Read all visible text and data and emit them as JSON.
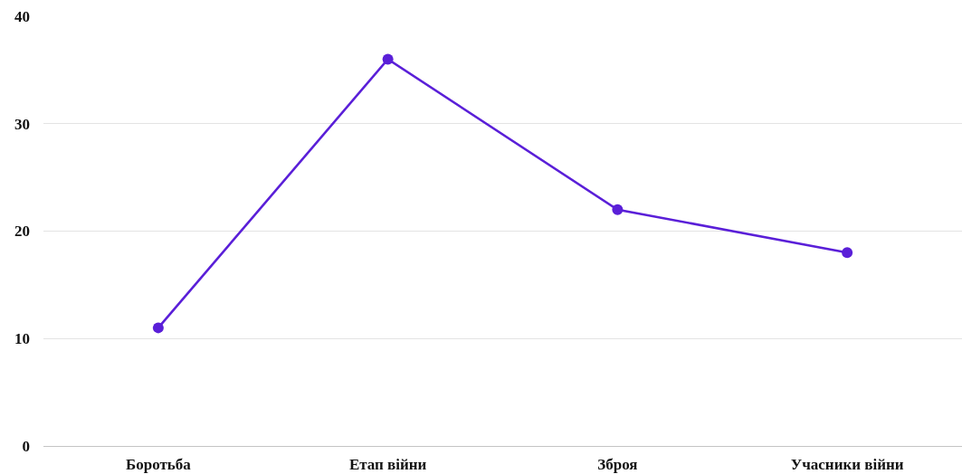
{
  "chart_data": {
    "type": "line",
    "categories": [
      "Боротьба",
      "Етап війни",
      "Зброя",
      "Учасники війни"
    ],
    "series": [
      {
        "color": "#5a1fd8",
        "values": [
          11,
          36,
          22,
          18
        ]
      }
    ],
    "ylim": [
      0,
      40
    ],
    "yticks": [
      0,
      10,
      20,
      30,
      40
    ],
    "grid": "y",
    "marker": "circle",
    "line_style": "solid"
  }
}
